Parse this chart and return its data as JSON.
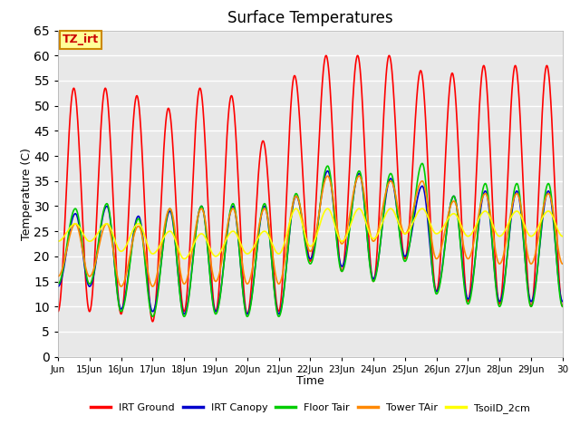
{
  "title": "Surface Temperatures",
  "xlabel": "Time",
  "ylabel": "Temperature (C)",
  "ylim": [
    0,
    65
  ],
  "xlim": [
    14.0,
    30.0
  ],
  "xtick_positions": [
    14,
    15,
    16,
    17,
    18,
    19,
    20,
    21,
    22,
    23,
    24,
    25,
    26,
    27,
    28,
    29,
    30
  ],
  "xtick_labels": [
    "Jun",
    "15Jun",
    "16Jun",
    "17Jun",
    "18Jun",
    "19Jun",
    "20Jun",
    "21Jun",
    "22Jun",
    "23Jun",
    "24Jun",
    "25Jun",
    "26Jun",
    "27Jun",
    "28Jun",
    "29Jun",
    "30"
  ],
  "ytick_positions": [
    0,
    5,
    10,
    15,
    20,
    25,
    30,
    35,
    40,
    45,
    50,
    55,
    60,
    65
  ],
  "annotation_text": "TZ_irt",
  "annotation_bg": "#ffff99",
  "annotation_fg": "#cc0000",
  "annotation_border": "#cc8800",
  "plot_bg_color": "#e8e8e8",
  "grid_color": "#ffffff",
  "series": {
    "IRT Ground": {
      "color": "#ff0000",
      "linewidth": 1.2,
      "peaks": [
        53.5,
        53.5,
        52.0,
        49.5,
        53.5,
        52.0,
        43.0,
        56.0,
        60.0,
        60.0,
        60.0,
        57.0,
        56.5,
        58.0,
        58.0
      ],
      "troughs": [
        9.0,
        8.5,
        7.0,
        9.0,
        9.0,
        8.5,
        9.0,
        19.0,
        17.0,
        15.0,
        19.5,
        13.0,
        11.0,
        10.5,
        10.0
      ],
      "sharp": true
    },
    "IRT Canopy": {
      "color": "#0000cc",
      "linewidth": 1.2,
      "peaks": [
        28.5,
        30.0,
        28.0,
        29.0,
        30.0,
        30.0,
        30.0,
        32.0,
        37.0,
        36.5,
        35.5,
        34.0,
        32.0,
        33.0,
        33.0
      ],
      "troughs": [
        14.0,
        9.5,
        9.0,
        8.5,
        9.0,
        8.5,
        8.5,
        19.5,
        18.0,
        15.5,
        20.0,
        13.0,
        11.5,
        11.0,
        11.0
      ],
      "sharp": false
    },
    "Floor Tair": {
      "color": "#00cc00",
      "linewidth": 1.2,
      "peaks": [
        29.5,
        30.5,
        27.5,
        29.5,
        30.0,
        30.5,
        30.5,
        32.5,
        38.0,
        37.0,
        36.5,
        38.5,
        32.0,
        34.5,
        34.5
      ],
      "troughs": [
        14.5,
        9.0,
        8.0,
        8.0,
        8.5,
        8.0,
        8.0,
        18.5,
        17.0,
        15.0,
        19.0,
        12.5,
        10.5,
        10.0,
        10.0
      ],
      "sharp": false
    },
    "Tower TAir": {
      "color": "#ff8800",
      "linewidth": 1.2,
      "peaks": [
        26.5,
        26.5,
        26.0,
        29.5,
        29.5,
        29.5,
        29.5,
        32.0,
        36.0,
        36.0,
        35.0,
        35.0,
        31.0,
        32.5,
        32.5
      ],
      "troughs": [
        16.0,
        14.0,
        14.0,
        14.5,
        15.0,
        14.5,
        14.5,
        21.0,
        22.5,
        23.0,
        24.5,
        19.5,
        19.5,
        18.5,
        18.5
      ],
      "sharp": false
    },
    "TsoilD_2cm": {
      "color": "#ffff00",
      "linewidth": 1.2,
      "peaks": [
        26.5,
        26.5,
        26.5,
        25.0,
        24.5,
        25.0,
        25.0,
        29.5,
        29.5,
        29.5,
        29.5,
        29.5,
        28.5,
        29.0,
        29.0
      ],
      "troughs": [
        23.0,
        21.0,
        20.5,
        19.5,
        20.0,
        20.5,
        20.5,
        22.0,
        23.0,
        23.5,
        24.5,
        24.5,
        24.0,
        24.0,
        24.0
      ],
      "sharp": false
    }
  },
  "legend_entries": [
    "IRT Ground",
    "IRT Canopy",
    "Floor Tair",
    "Tower TAir",
    "TsoilD_2cm"
  ],
  "legend_colors": [
    "#ff0000",
    "#0000cc",
    "#00cc00",
    "#ff8800",
    "#ffff00"
  ]
}
